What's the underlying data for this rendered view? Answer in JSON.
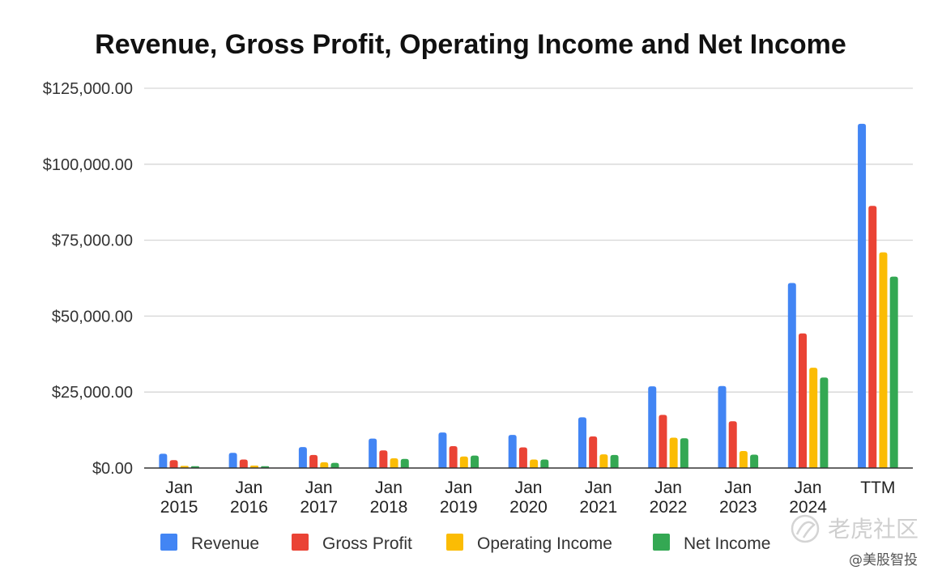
{
  "chart_data": {
    "type": "bar",
    "title": "Revenue, Gross Profit, Operating Income and Net Income",
    "xlabel": "",
    "ylabel": "",
    "categories": [
      [
        "Jan",
        "2015"
      ],
      [
        "Jan",
        "2016"
      ],
      [
        "Jan",
        "2017"
      ],
      [
        "Jan",
        "2018"
      ],
      [
        "Jan",
        "2019"
      ],
      [
        "Jan",
        "2020"
      ],
      [
        "Jan",
        "2021"
      ],
      [
        "Jan",
        "2022"
      ],
      [
        "Jan",
        "2023"
      ],
      [
        "Jan",
        "2024"
      ],
      [
        "TTM"
      ]
    ],
    "series": [
      {
        "name": "Revenue",
        "color": "#4285F4",
        "values": [
          4700,
          5000,
          6900,
          9700,
          11700,
          10900,
          16700,
          26900,
          27000,
          60900,
          113300
        ]
      },
      {
        "name": "Gross Profit",
        "color": "#EA4335",
        "values": [
          2600,
          2800,
          4300,
          5800,
          7200,
          6800,
          10400,
          17500,
          15400,
          44300,
          86300
        ]
      },
      {
        "name": "Operating Income",
        "color": "#FBBC04",
        "values": [
          700,
          800,
          1900,
          3200,
          3800,
          2800,
          4500,
          10000,
          5600,
          33000,
          71000
        ]
      },
      {
        "name": "Net Income",
        "color": "#34A853",
        "values": [
          600,
          600,
          1700,
          3000,
          4100,
          2800,
          4300,
          9800,
          4400,
          29800,
          63000
        ]
      }
    ],
    "ylim": [
      0,
      125000
    ],
    "yticks": [
      0,
      25000,
      50000,
      75000,
      100000,
      125000
    ],
    "ytick_labels": [
      "$0.00",
      "$25,000.00",
      "$50,000.00",
      "$75,000.00",
      "$100,000.00",
      "$125,000.00"
    ],
    "grid": true,
    "legend_position": "bottom"
  },
  "watermark": {
    "main": "老虎社区",
    "sub": "@美股智投",
    "icon": "tiger-logo-icon"
  }
}
